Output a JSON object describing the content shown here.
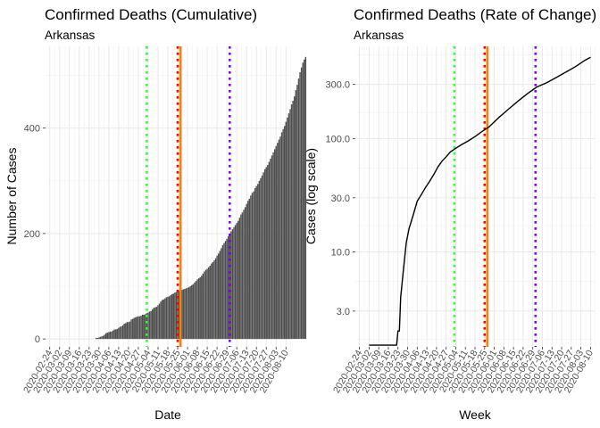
{
  "chart_data": [
    {
      "type": "bar",
      "title": "Confirmed Deaths (Cumulative)",
      "subtitle": "Arkansas",
      "xlabel": "Date",
      "ylabel": "Number of Cases",
      "y_ticks": [
        0,
        200,
        400
      ],
      "y_tick_labels": [
        "0",
        "200",
        "400"
      ],
      "ylim": [
        -15,
        555
      ],
      "x_tick_labels": [
        "2020-02-24",
        "2020-03-02",
        "2020-03-09",
        "2020-03-16",
        "2020-03-23",
        "2020-03-30",
        "2020-04-06",
        "2020-04-13",
        "2020-04-20",
        "2020-04-27",
        "2020-05-04",
        "2020-05-11",
        "2020-05-18",
        "2020-05-25",
        "2020-06-01",
        "2020-06-08",
        "2020-06-15",
        "2020-06-22",
        "2020-06-29",
        "2020-07-06",
        "2020-07-13",
        "2020-07-20",
        "2020-07-27",
        "2020-08-03",
        "2020-08-10"
      ],
      "x_start": "2020-02-24",
      "bar_color": "#4d4d4d",
      "grid": true,
      "values": [
        0,
        0,
        0,
        0,
        0,
        0,
        0,
        0,
        0,
        0,
        0,
        0,
        0,
        0,
        0,
        0,
        0,
        0,
        0,
        0,
        0,
        0,
        0,
        0,
        0,
        0,
        0,
        0,
        0,
        0,
        0,
        0,
        0,
        2,
        2,
        3,
        4,
        5,
        6,
        8,
        11,
        12,
        13,
        14,
        14,
        16,
        18,
        18,
        19,
        21,
        23,
        24,
        26,
        29,
        30,
        32,
        32,
        33,
        37,
        38,
        40,
        41,
        42,
        43,
        43,
        44,
        46,
        46,
        47,
        49,
        50,
        52,
        53,
        56,
        59,
        60,
        61,
        64,
        67,
        71,
        74,
        75,
        77,
        79,
        80,
        81,
        83,
        85,
        86,
        88,
        89,
        91,
        91,
        92,
        93,
        94,
        95,
        96,
        97,
        98,
        100,
        102,
        104,
        107,
        110,
        113,
        115,
        117,
        120,
        124,
        128,
        131,
        133,
        136,
        139,
        143,
        146,
        149,
        153,
        158,
        162,
        167,
        172,
        178,
        182,
        186,
        190,
        195,
        200,
        204,
        208,
        212,
        216,
        220,
        224,
        230,
        236,
        240,
        245,
        250,
        256,
        262,
        266,
        272,
        277,
        280,
        286,
        290,
        294,
        300,
        305,
        310,
        316,
        322,
        326,
        330,
        336,
        342,
        348,
        354,
        360,
        366,
        372,
        378,
        384,
        392,
        398,
        404,
        412,
        420,
        428,
        436,
        445,
        452,
        460,
        472,
        482,
        494,
        506,
        515,
        524,
        530,
        535
      ],
      "reference_lines": [
        {
          "date": "2020-05-03",
          "color": "#33ff33",
          "style": "dotted"
        },
        {
          "date": "2020-05-25",
          "color": "#ff0000",
          "style": "dotted"
        },
        {
          "date": "2020-05-27",
          "color": "#ff7f00",
          "style": "solid"
        },
        {
          "date": "2020-07-01",
          "color": "#8800ee",
          "style": "dotted"
        }
      ]
    },
    {
      "type": "line",
      "title": "Confirmed Deaths (Rate of Change)",
      "subtitle": "Arkansas",
      "xlabel": "Week",
      "ylabel": "Cases (log scale)",
      "y_scale": "log",
      "y_ticks": [
        3,
        10,
        30,
        100,
        300
      ],
      "y_tick_labels": [
        "3.0",
        "10.0",
        "30.0",
        "100.0",
        "300.0"
      ],
      "ylim": [
        1.45,
        650
      ],
      "x_tick_labels": [
        "2020-02-24",
        "2020-03-02",
        "2020-03-09",
        "2020-03-16",
        "2020-03-23",
        "2020-03-30",
        "2020-04-06",
        "2020-04-13",
        "2020-04-20",
        "2020-04-27",
        "2020-05-04",
        "2020-05-11",
        "2020-05-18",
        "2020-05-25",
        "2020-06-01",
        "2020-06-08",
        "2020-06-15",
        "2020-06-22",
        "2020-06-29",
        "2020-07-06",
        "2020-07-13",
        "2020-07-20",
        "2020-07-27",
        "2020-08-03",
        "2020-08-10"
      ],
      "line_color": "#000000",
      "grid": true,
      "series": [
        {
          "x": [
            "2020-03-02",
            "2020-03-16",
            "2020-03-22",
            "2020-03-23",
            "2020-03-24",
            "2020-03-25",
            "2020-03-27",
            "2020-03-29",
            "2020-03-31",
            "2020-04-03",
            "2020-04-06",
            "2020-04-09",
            "2020-04-12",
            "2020-04-15",
            "2020-04-18",
            "2020-04-21",
            "2020-04-24",
            "2020-04-27",
            "2020-04-30",
            "2020-05-04",
            "2020-05-08",
            "2020-05-13",
            "2020-05-18",
            "2020-05-23",
            "2020-05-28",
            "2020-06-04",
            "2020-06-11",
            "2020-06-18",
            "2020-06-25",
            "2020-07-02",
            "2020-07-09",
            "2020-07-16",
            "2020-07-23",
            "2020-07-30",
            "2020-08-06",
            "2020-08-10"
          ],
          "y": [
            1.5,
            1.5,
            1.5,
            2,
            2,
            4,
            7,
            12,
            16,
            21,
            28,
            32,
            37,
            42,
            48,
            56,
            63,
            69,
            76,
            82,
            88,
            95,
            104,
            115,
            126,
            152,
            180,
            212,
            248,
            285,
            310,
            345,
            385,
            430,
            490,
            520
          ]
        }
      ],
      "reference_lines": [
        {
          "date": "2020-05-03",
          "color": "#33ff33",
          "style": "dotted"
        },
        {
          "date": "2020-05-25",
          "color": "#ff0000",
          "style": "dotted"
        },
        {
          "date": "2020-05-27",
          "color": "#ff7f00",
          "style": "solid"
        },
        {
          "date": "2020-07-01",
          "color": "#8800ee",
          "style": "dotted"
        }
      ]
    }
  ]
}
